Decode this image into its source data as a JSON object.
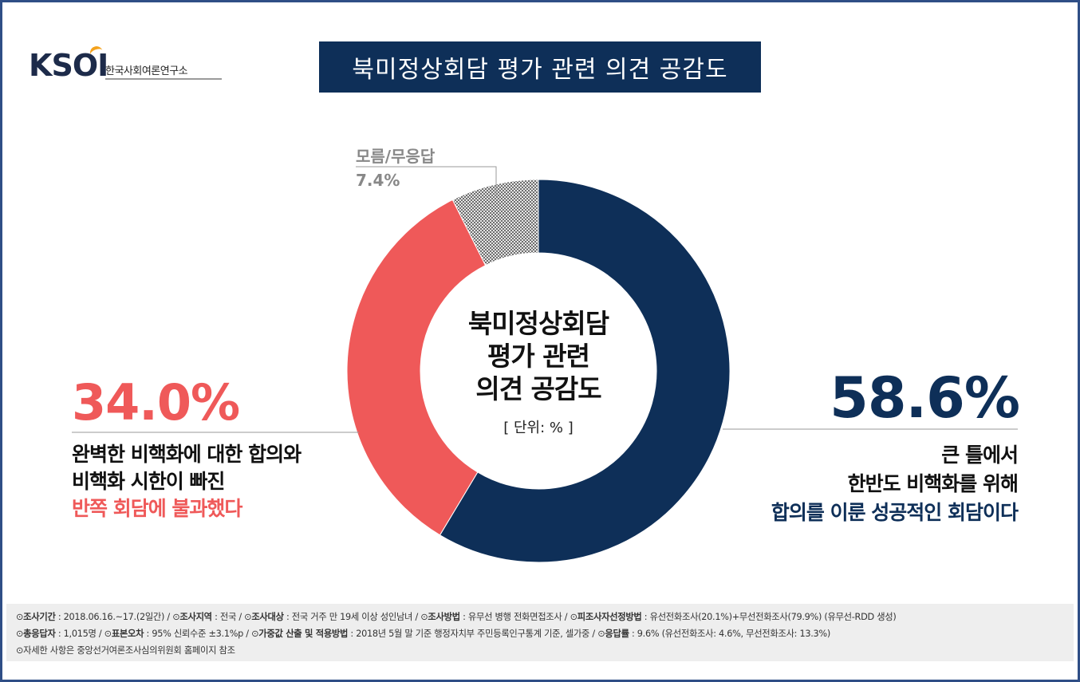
{
  "logo": {
    "mark": "KSOI",
    "org_name": "한국사회여론연구소"
  },
  "title": "북미정상회담 평가 관련 의견 공감도",
  "center": {
    "lines": [
      "북미정상회담",
      "평가 관련",
      "의견 공감도"
    ],
    "unit": "[ 단위: % ]"
  },
  "chart_data": {
    "type": "pie",
    "title": "북미정상회담 평가 관련 의견 공감도",
    "unit": "%",
    "slices": [
      {
        "label": "큰 틀에서 한반도 비핵화를 위해 합의를 이룬 성공적인 회담이다",
        "value": 58.6,
        "color": "#0e2f58",
        "display": "58.6%"
      },
      {
        "label": "완벽한 비핵화에 대한 합의와 비핵화 시한이 빠진 반쪽 회담에 불과했다",
        "value": 34.0,
        "color": "#ef5959",
        "display": "34.0%"
      },
      {
        "label": "모름/무응답",
        "value": 7.4,
        "color": "#b8b8b8",
        "display": "7.4%"
      }
    ]
  },
  "left": {
    "pct": "34.0%",
    "line1": "완벽한 비핵화에 대한 합의와",
    "line2": "비핵화 시한이 빠진",
    "line3": "반쪽 회담에 불과했다"
  },
  "right": {
    "pct": "58.6%",
    "line1": "큰 틀에서",
    "line2": "한반도 비핵화를 위해",
    "line3": "합의를 이룬 성공적인 회담이다"
  },
  "top_label": {
    "name": "모름/무응답",
    "pct": "7.4%"
  },
  "footer": {
    "row1": [
      {
        "k": "조사기간",
        "v": "2018.06.16.~17.(2일간)"
      },
      {
        "k": "조사지역",
        "v": "전국"
      },
      {
        "k": "조사대상",
        "v": "전국 거주 만 19세 이상 성인남녀"
      },
      {
        "k": "조사방법",
        "v": "유무선 병행 전화면접조사"
      },
      {
        "k": "피조사자선정방법",
        "v": "유선전화조사(20.1%)+무선전화조사(79.9%) (유무선-RDD 생성)"
      }
    ],
    "row2": [
      {
        "k": "총응답자",
        "v": "1,015명"
      },
      {
        "k": "표본오차",
        "v": "95% 신뢰수준 ±3.1%p"
      },
      {
        "k": "가중값 산출 및 적용방법",
        "v": "2018년 5월 말 기준 행정자치부 주민등록인구통계 기준, 셀가중"
      },
      {
        "k": "응답률",
        "v": "9.6% (유선전화조사: 4.6%, 무선전화조사: 13.3%)"
      }
    ],
    "row3": "자세한 사항은 중앙선거여론조사심의위원회 홈페이지 참조"
  }
}
